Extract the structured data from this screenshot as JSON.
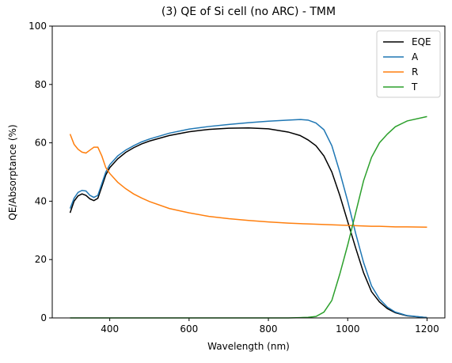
{
  "chart_data": {
    "type": "line",
    "title": "(3) QE of Si cell (no ARC) - TMM",
    "x_label": "Wavelength (nm)",
    "y_label": "QE/Absorptance (%)",
    "x": [
      300,
      310,
      320,
      330,
      340,
      350,
      360,
      370,
      380,
      390,
      400,
      420,
      440,
      460,
      480,
      500,
      550,
      600,
      650,
      700,
      750,
      800,
      850,
      880,
      900,
      920,
      940,
      960,
      980,
      1000,
      1020,
      1040,
      1060,
      1080,
      1100,
      1120,
      1150,
      1200
    ],
    "series": [
      {
        "name": "EQE",
        "color": "#000000",
        "values": [
          36,
          40,
          41.8,
          42.5,
          42,
          40.8,
          40.2,
          41,
          45,
          49,
          51.5,
          54.5,
          56.7,
          58.3,
          59.6,
          60.6,
          62.5,
          63.8,
          64.6,
          65,
          65.1,
          64.8,
          63.7,
          62.5,
          61,
          59,
          55.5,
          50,
          42,
          33,
          24,
          15.5,
          9,
          5.5,
          3.2,
          1.8,
          0.7,
          0.1
        ]
      },
      {
        "name": "A",
        "color": "#1f77b4",
        "values": [
          37.5,
          41,
          43,
          43.7,
          43.5,
          42,
          41.3,
          42,
          46,
          50,
          52.5,
          55.5,
          57.5,
          59,
          60.3,
          61.3,
          63.3,
          64.7,
          65.6,
          66.3,
          66.9,
          67.4,
          67.8,
          68,
          67.8,
          66.8,
          64.5,
          59,
          50,
          40,
          29,
          19,
          11,
          6.5,
          3.7,
          2,
          0.8,
          0.1
        ]
      },
      {
        "name": "R",
        "color": "#ff7f0e",
        "values": [
          63,
          59.5,
          57.8,
          56.8,
          56.5,
          57.5,
          58.5,
          58.5,
          55.5,
          51.5,
          49.5,
          46.5,
          44.3,
          42.5,
          41.1,
          39.9,
          37.5,
          36,
          34.8,
          34,
          33.4,
          32.9,
          32.5,
          32.3,
          32.2,
          32.1,
          32,
          31.9,
          31.8,
          31.7,
          31.6,
          31.5,
          31.4,
          31.4,
          31.3,
          31.2,
          31.2,
          31.1
        ]
      },
      {
        "name": "T",
        "color": "#2ca02c",
        "values": [
          0,
          0,
          0,
          0,
          0,
          0,
          0,
          0,
          0,
          0,
          0,
          0,
          0,
          0,
          0,
          0,
          0,
          0,
          0,
          0,
          0,
          0,
          0,
          0.1,
          0.2,
          0.5,
          2,
          6,
          15,
          25,
          36,
          47,
          55,
          60,
          63,
          65.5,
          67.5,
          69
        ]
      }
    ],
    "xlim": [
      255,
      1245
    ],
    "ylim": [
      0,
      100
    ],
    "xticks": [
      400,
      600,
      800,
      1000,
      1200
    ],
    "yticks": [
      0,
      20,
      40,
      60,
      80,
      100
    ],
    "grid": false,
    "legend": "upper right"
  }
}
